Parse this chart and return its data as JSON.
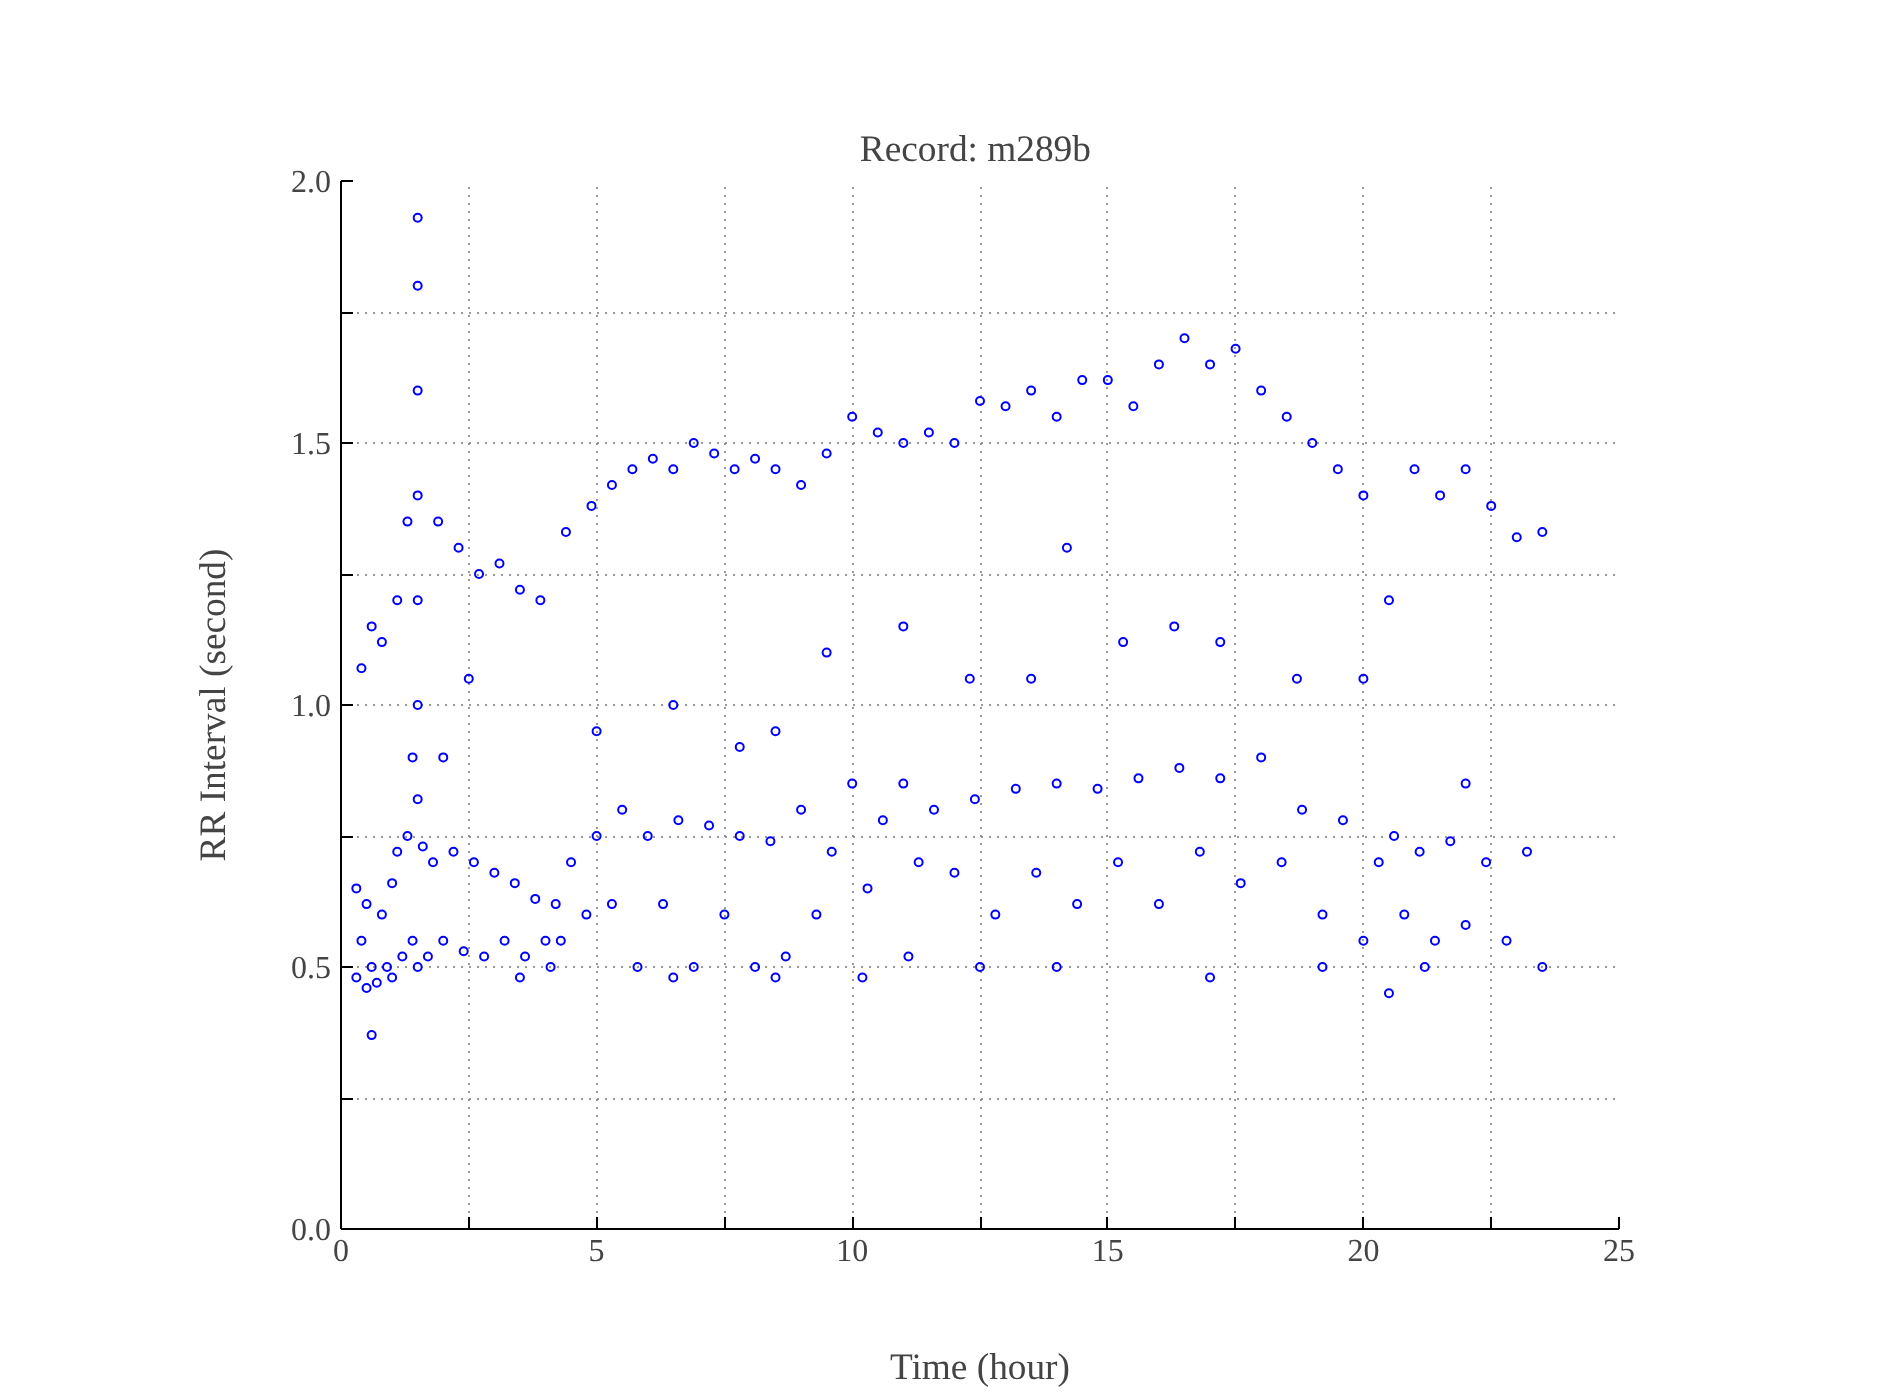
{
  "chart_data": {
    "type": "scatter",
    "title": "Record:  m289b",
    "xlabel": "Time (hour)",
    "ylabel": "RR Interval (second)",
    "xlim": [
      0,
      25
    ],
    "ylim": [
      0,
      2.0
    ],
    "xticks": [
      0,
      {
        "value": 2.5,
        "label": null
      },
      5,
      {
        "value": 7.5,
        "label": null
      },
      10,
      {
        "value": 12.5,
        "label": null
      },
      15,
      {
        "value": 17.5,
        "label": null
      },
      20,
      {
        "value": 22.5,
        "label": null
      },
      25
    ],
    "yticks": [
      {
        "value": 0,
        "label": "0.0"
      },
      {
        "value": 0.25,
        "label": null
      },
      0.5,
      {
        "value": 0.75,
        "label": null
      },
      {
        "value": 1.0,
        "label": "1.0"
      },
      {
        "value": 1.25,
        "label": null
      },
      1.5,
      {
        "value": 1.75,
        "label": null
      },
      {
        "value": 2.0,
        "label": "2.0"
      }
    ],
    "grid": true,
    "marker": "circle",
    "series": [
      {
        "color": "#0000ff",
        "x": [
          0.3,
          0.3,
          0.4,
          0.5,
          0.5,
          0.6,
          0.7,
          0.8,
          0.9,
          1.0,
          1.0,
          1.1,
          1.2,
          1.3,
          1.4,
          1.4,
          1.5,
          1.5,
          1.5,
          1.5,
          1.5,
          1.5,
          1.5,
          1.5,
          1.6,
          1.7,
          1.8,
          2.0,
          2.2,
          2.4,
          2.6,
          2.8,
          3.0,
          3.2,
          3.4,
          3.6,
          3.8,
          4.0,
          4.1,
          4.2,
          4.3,
          4.5,
          4.8,
          5.0,
          5.3,
          5.5,
          5.8,
          6.0,
          6.3,
          6.6,
          6.9,
          7.2,
          7.5,
          7.8,
          8.1,
          8.4,
          8.7,
          9.0,
          9.3,
          9.6,
          10.0,
          10.3,
          10.6,
          11.0,
          11.1,
          11.3,
          11.6,
          12.0,
          12.4,
          12.8,
          13.2,
          13.6,
          14.0,
          14.4,
          14.8,
          15.2,
          15.6,
          16.0,
          16.4,
          16.8,
          17.2,
          17.6,
          18.0,
          18.4,
          18.8,
          19.2,
          19.6,
          20.0,
          20.3,
          20.5,
          20.6,
          20.8,
          21.1,
          21.4,
          21.7,
          22.0,
          22.4,
          22.8,
          23.2,
          23.5,
          0.4,
          0.6,
          0.8,
          1.1,
          1.3,
          1.9,
          2.3,
          2.7,
          3.1,
          3.5,
          3.9,
          4.4,
          4.9,
          5.3,
          5.7,
          6.1,
          6.5,
          6.9,
          7.3,
          7.7,
          8.1,
          8.5,
          9.0,
          9.5,
          10.0,
          10.5,
          11.0,
          11.5,
          12.0,
          12.5,
          13.0,
          13.5,
          14.0,
          14.5,
          15.0,
          15.5,
          16.0,
          16.5,
          17.0,
          17.5,
          18.0,
          18.5,
          19.0,
          19.5,
          20.0,
          20.5,
          21.0,
          21.5,
          22.0,
          22.5,
          23.0,
          23.5,
          2.0,
          2.5,
          5.0,
          6.5,
          7.8,
          8.5,
          9.5,
          11.0,
          12.3,
          13.5,
          14.2,
          15.3,
          16.3,
          17.2,
          18.7,
          20.0,
          22.0,
          0.6,
          3.5,
          6.5,
          8.5,
          10.2,
          12.5,
          14.0,
          17.0,
          19.2,
          21.2
        ],
        "values": [
          0.65,
          0.48,
          0.55,
          0.62,
          0.46,
          0.5,
          0.47,
          0.6,
          0.5,
          0.66,
          0.48,
          0.72,
          0.52,
          0.75,
          0.55,
          0.9,
          1.2,
          1.4,
          1.6,
          1.8,
          1.93,
          1.0,
          0.82,
          0.5,
          0.73,
          0.52,
          0.7,
          0.55,
          0.72,
          0.53,
          0.7,
          0.52,
          0.68,
          0.55,
          0.66,
          0.52,
          0.63,
          0.55,
          0.5,
          0.62,
          0.55,
          0.7,
          0.6,
          0.75,
          0.62,
          0.8,
          0.5,
          0.75,
          0.62,
          0.78,
          0.5,
          0.77,
          0.6,
          0.75,
          0.5,
          0.74,
          0.52,
          0.8,
          0.6,
          0.72,
          0.85,
          0.65,
          0.78,
          0.85,
          0.52,
          0.7,
          0.8,
          0.68,
          0.82,
          0.6,
          0.84,
          0.68,
          0.85,
          0.62,
          0.84,
          0.7,
          0.86,
          0.62,
          0.88,
          0.72,
          0.86,
          0.66,
          0.9,
          0.7,
          0.8,
          0.6,
          0.78,
          0.55,
          0.7,
          0.45,
          0.75,
          0.6,
          0.72,
          0.55,
          0.74,
          0.58,
          0.7,
          0.55,
          0.72,
          0.5,
          1.07,
          1.15,
          1.12,
          1.2,
          1.35,
          1.35,
          1.3,
          1.25,
          1.27,
          1.22,
          1.2,
          1.33,
          1.38,
          1.42,
          1.45,
          1.47,
          1.45,
          1.5,
          1.48,
          1.45,
          1.47,
          1.45,
          1.42,
          1.48,
          1.55,
          1.52,
          1.5,
          1.52,
          1.5,
          1.58,
          1.57,
          1.6,
          1.55,
          1.62,
          1.62,
          1.57,
          1.65,
          1.7,
          1.65,
          1.68,
          1.6,
          1.55,
          1.5,
          1.45,
          1.4,
          1.2,
          1.45,
          1.4,
          1.45,
          1.38,
          1.32,
          1.33,
          0.9,
          1.05,
          0.95,
          1.0,
          0.92,
          0.95,
          1.1,
          1.15,
          1.05,
          1.05,
          1.3,
          1.12,
          1.15,
          1.12,
          1.05,
          1.05,
          0.85,
          0.37,
          0.48,
          0.48,
          0.48,
          0.48,
          0.5,
          0.5,
          0.48,
          0.5,
          0.5
        ]
      }
    ]
  }
}
